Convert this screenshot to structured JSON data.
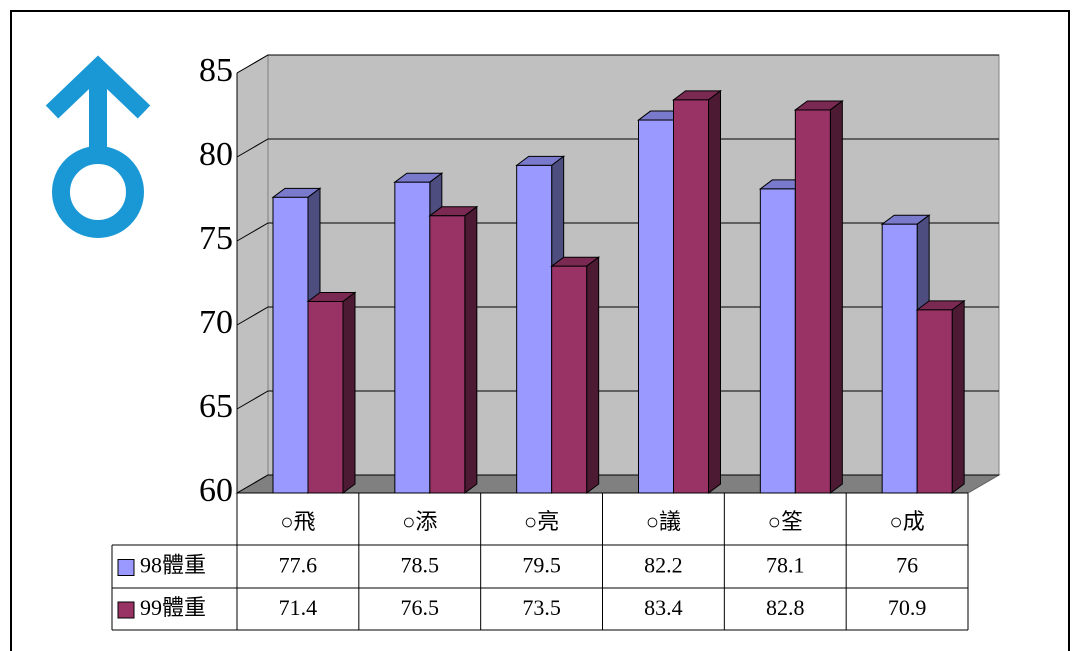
{
  "chart_data": {
    "type": "bar",
    "categories": [
      "○飛",
      "○添",
      "○亮",
      "○議",
      "○筌",
      "○成"
    ],
    "series": [
      {
        "name": "98體重",
        "color": "#9999ff",
        "values": [
          77.6,
          78.5,
          79.5,
          82.2,
          78.1,
          76
        ]
      },
      {
        "name": "99體重",
        "color": "#993366",
        "values": [
          71.4,
          76.5,
          73.5,
          83.4,
          82.8,
          70.9
        ]
      }
    ],
    "ylim": [
      60,
      85
    ],
    "yticks": [
      60,
      65,
      70,
      75,
      80,
      85
    ],
    "grid": true
  }
}
